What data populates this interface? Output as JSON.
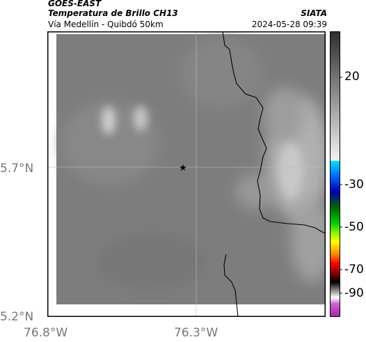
{
  "header": {
    "satellite": "GOES-EAST",
    "product": "Temperatura de Brillo CH13",
    "region": "Vía Medellín - Quibdó 50km",
    "org": "SIATA",
    "timestamp": "2024-05-28 09:39"
  },
  "map": {
    "lat_labels": [
      "5.7°N",
      "5.2°N"
    ],
    "lon_labels": [
      "76.8°W",
      "76.3°W"
    ],
    "marker_icon": "star-marker-icon",
    "gridlines": true,
    "boundary_color": "#000000"
  },
  "colorbar": {
    "ticks": [
      "20",
      "-30",
      "-50",
      "-70",
      "-90"
    ],
    "colors": {
      "warm_gray_top": "#333333",
      "warm_gray_bottom": "#f0f0f0",
      "cyan": "#00e5ff",
      "blue": "#0000cc",
      "green": "#00cc00",
      "yellow": "#ffff00",
      "red": "#ff0000",
      "black": "#000000",
      "magenta": "#cc33cc"
    }
  }
}
